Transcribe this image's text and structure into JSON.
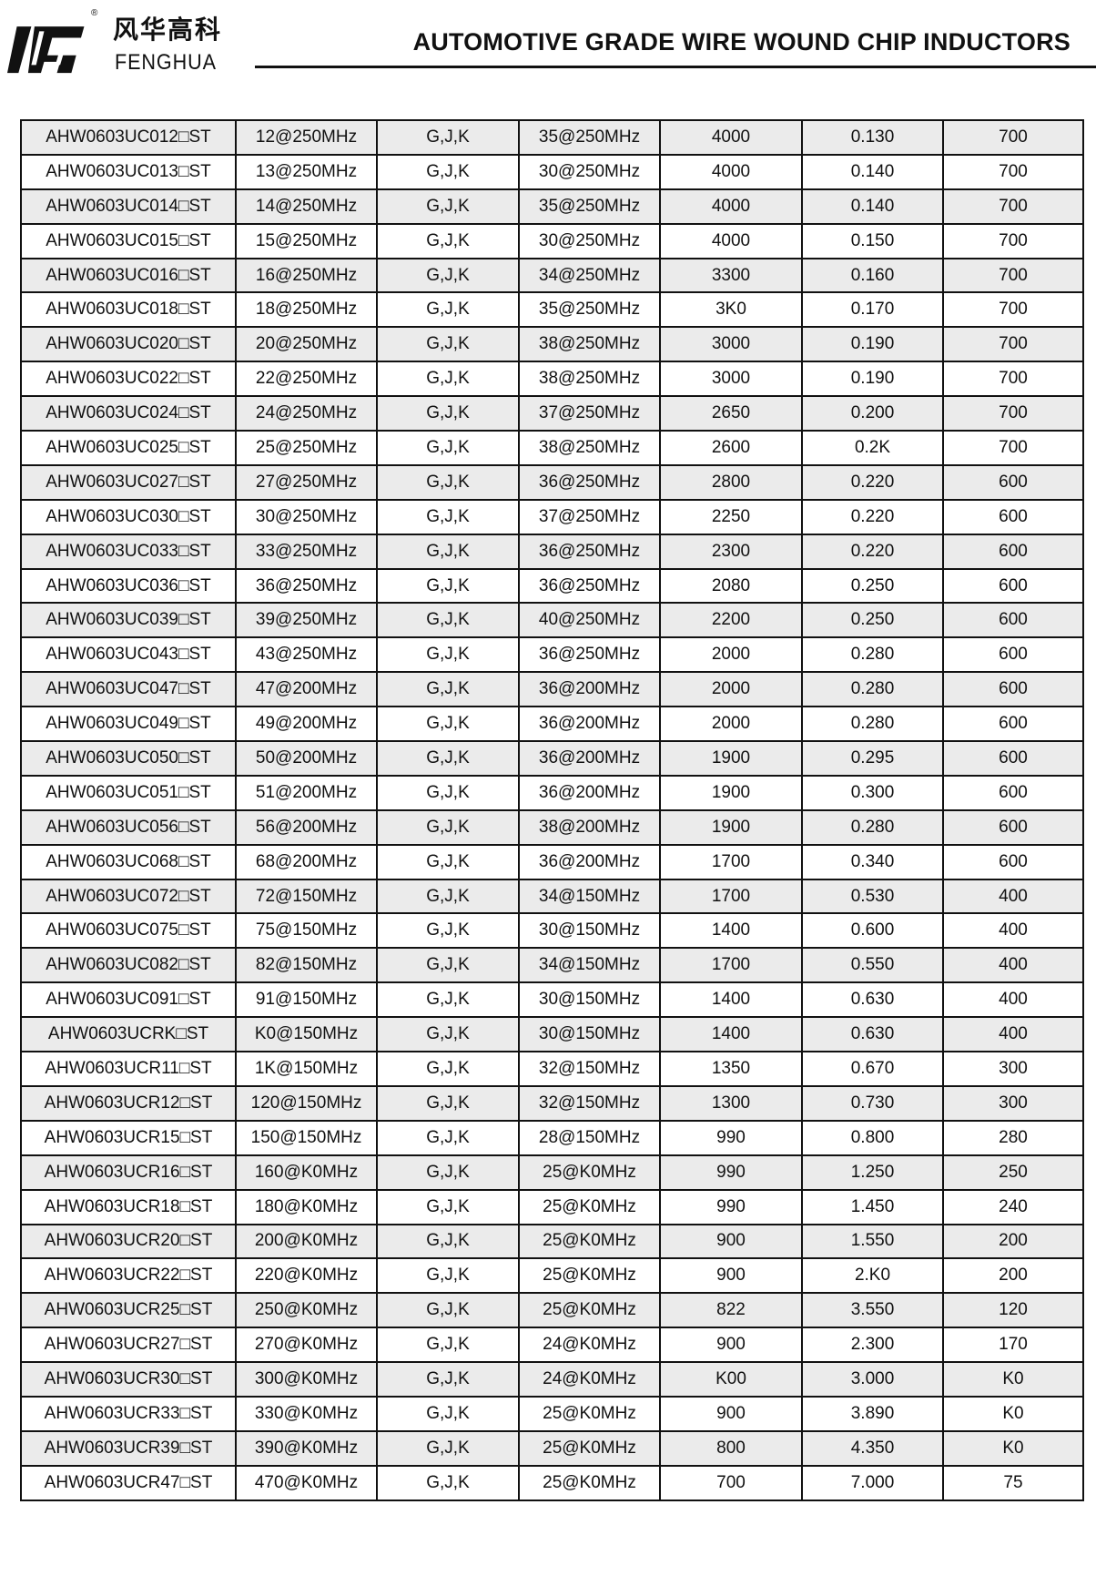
{
  "header": {
    "brand_cn": "风华高科",
    "brand_en": "FENGHUA",
    "registered_mark": "®",
    "title": "AUTOMOTIVE GRADE WIRE WOUND CHIP INDUCTORS"
  },
  "table": {
    "rows": [
      [
        "AHW0603UC012□ST",
        "12@250MHz",
        "G,J,K",
        "35@250MHz",
        "4000",
        "0.130",
        "700"
      ],
      [
        "AHW0603UC013□ST",
        "13@250MHz",
        "G,J,K",
        "30@250MHz",
        "4000",
        "0.140",
        "700"
      ],
      [
        "AHW0603UC014□ST",
        "14@250MHz",
        "G,J,K",
        "35@250MHz",
        "4000",
        "0.140",
        "700"
      ],
      [
        "AHW0603UC015□ST",
        "15@250MHz",
        "G,J,K",
        "30@250MHz",
        "4000",
        "0.150",
        "700"
      ],
      [
        "AHW0603UC016□ST",
        "16@250MHz",
        "G,J,K",
        "34@250MHz",
        "3300",
        "0.160",
        "700"
      ],
      [
        "AHW0603UC018□ST",
        "18@250MHz",
        "G,J,K",
        "35@250MHz",
        "3K0",
        "0.170",
        "700"
      ],
      [
        "AHW0603UC020□ST",
        "20@250MHz",
        "G,J,K",
        "38@250MHz",
        "3000",
        "0.190",
        "700"
      ],
      [
        "AHW0603UC022□ST",
        "22@250MHz",
        "G,J,K",
        "38@250MHz",
        "3000",
        "0.190",
        "700"
      ],
      [
        "AHW0603UC024□ST",
        "24@250MHz",
        "G,J,K",
        "37@250MHz",
        "2650",
        "0.200",
        "700"
      ],
      [
        "AHW0603UC025□ST",
        "25@250MHz",
        "G,J,K",
        "38@250MHz",
        "2600",
        "0.2K",
        "700"
      ],
      [
        "AHW0603UC027□ST",
        "27@250MHz",
        "G,J,K",
        "36@250MHz",
        "2800",
        "0.220",
        "600"
      ],
      [
        "AHW0603UC030□ST",
        "30@250MHz",
        "G,J,K",
        "37@250MHz",
        "2250",
        "0.220",
        "600"
      ],
      [
        "AHW0603UC033□ST",
        "33@250MHz",
        "G,J,K",
        "36@250MHz",
        "2300",
        "0.220",
        "600"
      ],
      [
        "AHW0603UC036□ST",
        "36@250MHz",
        "G,J,K",
        "36@250MHz",
        "2080",
        "0.250",
        "600"
      ],
      [
        "AHW0603UC039□ST",
        "39@250MHz",
        "G,J,K",
        "40@250MHz",
        "2200",
        "0.250",
        "600"
      ],
      [
        "AHW0603UC043□ST",
        "43@250MHz",
        "G,J,K",
        "36@250MHz",
        "2000",
        "0.280",
        "600"
      ],
      [
        "AHW0603UC047□ST",
        "47@200MHz",
        "G,J,K",
        "36@200MHz",
        "2000",
        "0.280",
        "600"
      ],
      [
        "AHW0603UC049□ST",
        "49@200MHz",
        "G,J,K",
        "36@200MHz",
        "2000",
        "0.280",
        "600"
      ],
      [
        "AHW0603UC050□ST",
        "50@200MHz",
        "G,J,K",
        "36@200MHz",
        "1900",
        "0.295",
        "600"
      ],
      [
        "AHW0603UC051□ST",
        "51@200MHz",
        "G,J,K",
        "36@200MHz",
        "1900",
        "0.300",
        "600"
      ],
      [
        "AHW0603UC056□ST",
        "56@200MHz",
        "G,J,K",
        "38@200MHz",
        "1900",
        "0.280",
        "600"
      ],
      [
        "AHW0603UC068□ST",
        "68@200MHz",
        "G,J,K",
        "36@200MHz",
        "1700",
        "0.340",
        "600"
      ],
      [
        "AHW0603UC072□ST",
        "72@150MHz",
        "G,J,K",
        "34@150MHz",
        "1700",
        "0.530",
        "400"
      ],
      [
        "AHW0603UC075□ST",
        "75@150MHz",
        "G,J,K",
        "30@150MHz",
        "1400",
        "0.600",
        "400"
      ],
      [
        "AHW0603UC082□ST",
        "82@150MHz",
        "G,J,K",
        "34@150MHz",
        "1700",
        "0.550",
        "400"
      ],
      [
        "AHW0603UC091□ST",
        "91@150MHz",
        "G,J,K",
        "30@150MHz",
        "1400",
        "0.630",
        "400"
      ],
      [
        "AHW0603UCRK□ST",
        "K0@150MHz",
        "G,J,K",
        "30@150MHz",
        "1400",
        "0.630",
        "400"
      ],
      [
        "AHW0603UCR11□ST",
        "1K@150MHz",
        "G,J,K",
        "32@150MHz",
        "1350",
        "0.670",
        "300"
      ],
      [
        "AHW0603UCR12□ST",
        "120@150MHz",
        "G,J,K",
        "32@150MHz",
        "1300",
        "0.730",
        "300"
      ],
      [
        "AHW0603UCR15□ST",
        "150@150MHz",
        "G,J,K",
        "28@150MHz",
        "990",
        "0.800",
        "280"
      ],
      [
        "AHW0603UCR16□ST",
        "160@K0MHz",
        "G,J,K",
        "25@K0MHz",
        "990",
        "1.250",
        "250"
      ],
      [
        "AHW0603UCR18□ST",
        "180@K0MHz",
        "G,J,K",
        "25@K0MHz",
        "990",
        "1.450",
        "240"
      ],
      [
        "AHW0603UCR20□ST",
        "200@K0MHz",
        "G,J,K",
        "25@K0MHz",
        "900",
        "1.550",
        "200"
      ],
      [
        "AHW0603UCR22□ST",
        "220@K0MHz",
        "G,J,K",
        "25@K0MHz",
        "900",
        "2.K0",
        "200"
      ],
      [
        "AHW0603UCR25□ST",
        "250@K0MHz",
        "G,J,K",
        "25@K0MHz",
        "822",
        "3.550",
        "120"
      ],
      [
        "AHW0603UCR27□ST",
        "270@K0MHz",
        "G,J,K",
        "24@K0MHz",
        "900",
        "2.300",
        "170"
      ],
      [
        "AHW0603UCR30□ST",
        "300@K0MHz",
        "G,J,K",
        "24@K0MHz",
        "K00",
        "3.000",
        "K0"
      ],
      [
        "AHW0603UCR33□ST",
        "330@K0MHz",
        "G,J,K",
        "25@K0MHz",
        "900",
        "3.890",
        "K0"
      ],
      [
        "AHW0603UCR39□ST",
        "390@K0MHz",
        "G,J,K",
        "25@K0MHz",
        "800",
        "4.350",
        "K0"
      ],
      [
        "AHW0603UCR47□ST",
        "470@K0MHz",
        "G,J,K",
        "25@K0MHz",
        "700",
        "7.000",
        "75"
      ]
    ]
  },
  "colors": {
    "row_shade": "#ebebeb",
    "border": "#111111"
  }
}
